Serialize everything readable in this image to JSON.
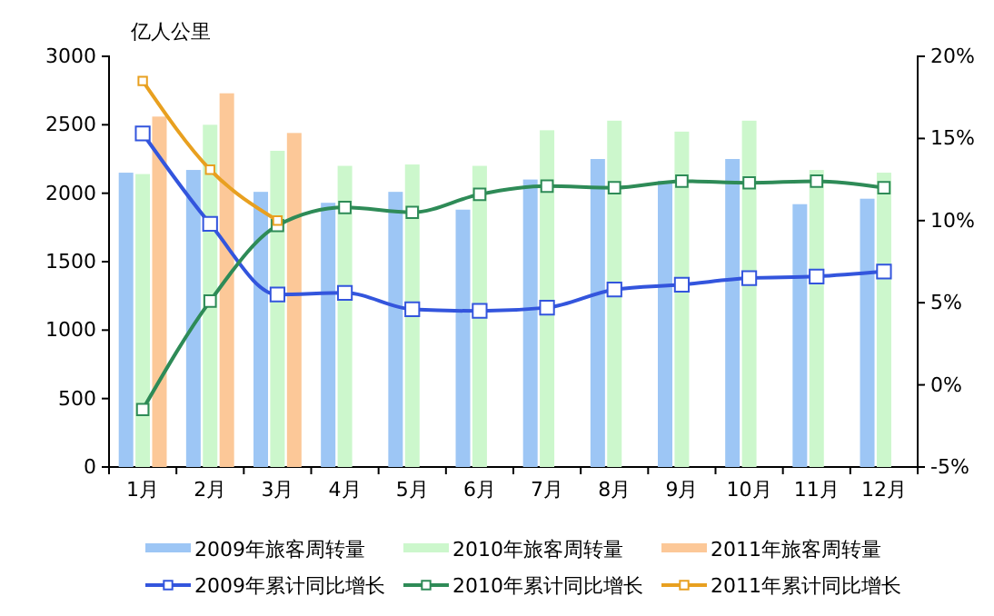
{
  "chart_data": {
    "type": "bar",
    "ylabel": "亿人公里",
    "categories": [
      "1月",
      "2月",
      "3月",
      "4月",
      "5月",
      "6月",
      "7月",
      "8月",
      "9月",
      "10月",
      "11月",
      "12月"
    ],
    "series": [
      {
        "name": "2009年旅客周转量",
        "color": "#9dc6f5",
        "values": [
          2150,
          2170,
          2010,
          1930,
          2010,
          1880,
          2100,
          2250,
          2090,
          2250,
          1920,
          1960
        ]
      },
      {
        "name": "2010年旅客周转量",
        "color": "#ccf7cc",
        "values": [
          2140,
          2500,
          2310,
          2200,
          2210,
          2200,
          2460,
          2530,
          2450,
          2530,
          2170,
          2150
        ]
      },
      {
        "name": "2011年旅客周转量",
        "color": "#fcc898",
        "values": [
          2560,
          2730,
          2440,
          null,
          null,
          null,
          null,
          null,
          null,
          null,
          null,
          null
        ]
      },
      {
        "name": "2009年累计同比增长",
        "type": "line",
        "axis": "y2",
        "color": "#3355dd",
        "values": [
          15.3,
          9.8,
          5.5,
          5.6,
          4.6,
          4.5,
          4.7,
          5.8,
          6.1,
          6.5,
          6.6,
          6.9
        ]
      },
      {
        "name": "2010年累计同比增长",
        "type": "line",
        "axis": "y2",
        "color": "#2e8b57",
        "values": [
          -1.5,
          5.1,
          9.7,
          10.8,
          10.5,
          11.6,
          12.1,
          12.0,
          12.4,
          12.3,
          12.4,
          12.0
        ]
      },
      {
        "name": "2011年累计同比增长",
        "type": "line",
        "axis": "y2",
        "color": "#e8a020",
        "values": [
          18.5,
          13.1,
          10.0,
          null,
          null,
          null,
          null,
          null,
          null,
          null,
          null,
          null
        ]
      }
    ],
    "ylim": [
      0,
      3000
    ],
    "yticks": [
      0,
      500,
      1000,
      1500,
      2000,
      2500,
      3000
    ],
    "y2lim": [
      -5,
      20
    ],
    "y2ticks": [
      {
        "value": -5,
        "label": "-5%"
      },
      {
        "value": 0,
        "label": "0%"
      },
      {
        "value": 5,
        "label": "5%"
      },
      {
        "value": 10,
        "label": "10%"
      },
      {
        "value": 15,
        "label": "15%"
      },
      {
        "value": 20,
        "label": "20%"
      }
    ],
    "marker": "square",
    "legend": "bottom",
    "grid": false
  }
}
